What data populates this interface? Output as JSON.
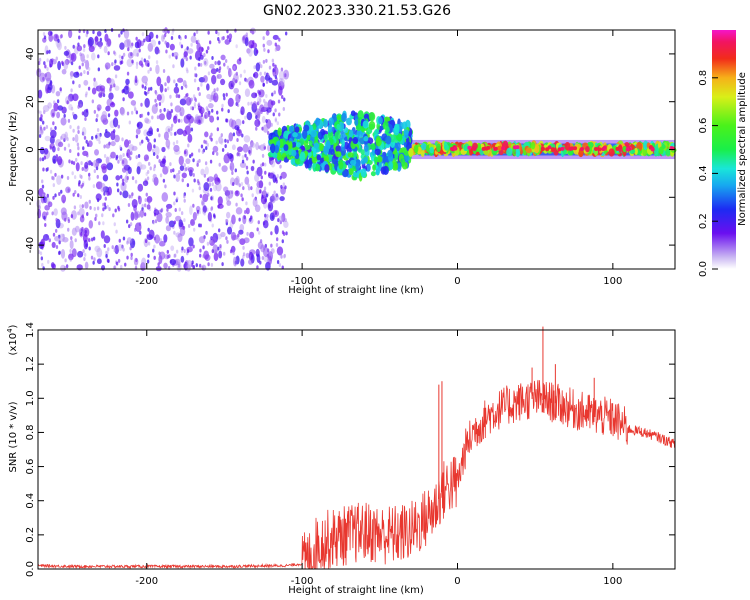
{
  "figure": {
    "title": "GN02.2023.330.21.53.G26"
  },
  "chart_data": [
    {
      "type": "heatmap",
      "xlabel": "Height of straight line (km)",
      "ylabel": "Frequency (Hz)",
      "xlim": [
        -270,
        140
      ],
      "ylim": [
        -50,
        50
      ],
      "xticks": [
        -200,
        -100,
        0,
        100
      ],
      "yticks": [
        -40,
        -20,
        0,
        20,
        40
      ],
      "regions": [
        {
          "x_range": [
            -270,
            -110
          ],
          "description_level": "noise",
          "freq_spread": [
            -50,
            50
          ],
          "amplitude_range": [
            0.05,
            0.2
          ]
        },
        {
          "x_range": [
            -120,
            -30
          ],
          "description_level": "turbulent",
          "freq_spread": [
            -10,
            15
          ],
          "amplitude_range": [
            0.2,
            0.6
          ]
        },
        {
          "x_range": [
            -30,
            140
          ],
          "description_level": "steady",
          "freq_spread": [
            -3,
            4
          ],
          "amplitude_range": [
            0.4,
            0.95
          ]
        }
      ],
      "colorbar": {
        "label": "Normalized spectral amplitude",
        "range": [
          0.0,
          1.0
        ],
        "ticks": [
          0.0,
          0.2,
          0.4,
          0.6,
          0.8
        ]
      }
    },
    {
      "type": "line",
      "xlabel": "Height of straight line (km)",
      "ylabel": "SNR (10 * v/v)",
      "y_multiplier": "(x10",
      "y_multiplier_exp": "4",
      "y_multiplier_close": ")",
      "xlim": [
        -270,
        140
      ],
      "ylim": [
        0.0,
        1.4
      ],
      "xticks": [
        -200,
        -100,
        0,
        100
      ],
      "yticks": [
        0.0,
        0.2,
        0.4,
        0.6,
        0.8,
        1.0,
        1.2,
        1.4
      ],
      "color": "#e8372f",
      "series": [
        {
          "x": [
            -270,
            -250,
            -200,
            -150,
            -110,
            -100,
            -95,
            -90,
            -80,
            -70,
            -60,
            -50,
            -40,
            -30,
            -20,
            -15,
            -10,
            -5,
            0,
            5,
            10,
            15,
            20,
            30,
            40,
            50,
            60,
            70,
            80,
            90,
            100,
            110,
            120,
            130,
            140
          ],
          "values": [
            0.02,
            0.015,
            0.015,
            0.015,
            0.02,
            0.03,
            0.06,
            0.15,
            0.18,
            0.2,
            0.22,
            0.2,
            0.2,
            0.22,
            0.3,
            0.35,
            0.45,
            0.5,
            0.5,
            0.7,
            0.8,
            0.85,
            0.9,
            0.95,
            0.98,
            1.0,
            0.98,
            0.95,
            0.92,
            0.9,
            0.88,
            0.82,
            0.8,
            0.77,
            0.73
          ]
        }
      ],
      "spikes": [
        {
          "x": 55,
          "y": 1.42
        },
        {
          "x": 63,
          "y": 1.2
        },
        {
          "x": 48,
          "y": 1.18
        },
        {
          "x": -12,
          "y": 1.08
        },
        {
          "x": -10,
          "y": 1.1
        },
        {
          "x": 88,
          "y": 1.12
        }
      ]
    }
  ]
}
